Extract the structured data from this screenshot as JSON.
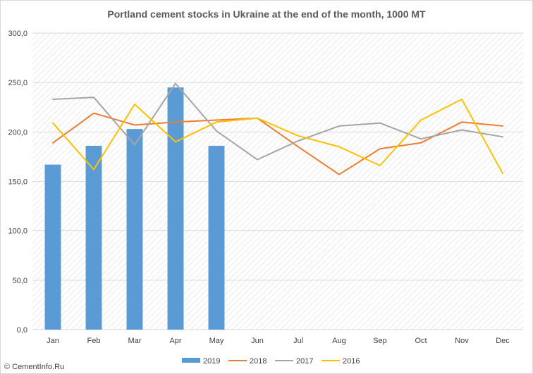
{
  "chart_data": {
    "type": "bar",
    "title": "Portland cement stocks in Ukraine at the end of the month, 1000 MT",
    "categories": [
      "Jan",
      "Feb",
      "Mar",
      "Apr",
      "May",
      "Jun",
      "Jul",
      "Aug",
      "Sep",
      "Oct",
      "Nov",
      "Dec"
    ],
    "y_ticks": [
      "0,0",
      "50,0",
      "100,0",
      "150,0",
      "200,0",
      "250,0",
      "300,0"
    ],
    "ylim": [
      0,
      300
    ],
    "grid": true,
    "legend_position": "bottom",
    "bar_series": {
      "name": "2019",
      "color": "#5b9bd5",
      "values": [
        167,
        186,
        203,
        245,
        186
      ]
    },
    "line_series": [
      {
        "name": "2018",
        "color": "#ed7d31",
        "values": [
          189,
          219,
          207,
          210,
          212,
          214,
          185,
          157,
          183,
          189,
          210,
          206
        ]
      },
      {
        "name": "2017",
        "color": "#a5a5a5",
        "values": [
          233,
          235,
          187,
          249,
          201,
          172,
          191,
          206,
          209,
          193,
          202,
          195
        ]
      },
      {
        "name": "2016",
        "color": "#ffc000",
        "values": [
          209,
          162,
          228,
          190,
          210,
          214,
          196,
          185,
          166,
          212,
          233,
          158
        ]
      }
    ]
  },
  "watermark": "© CementInfo.Ru"
}
